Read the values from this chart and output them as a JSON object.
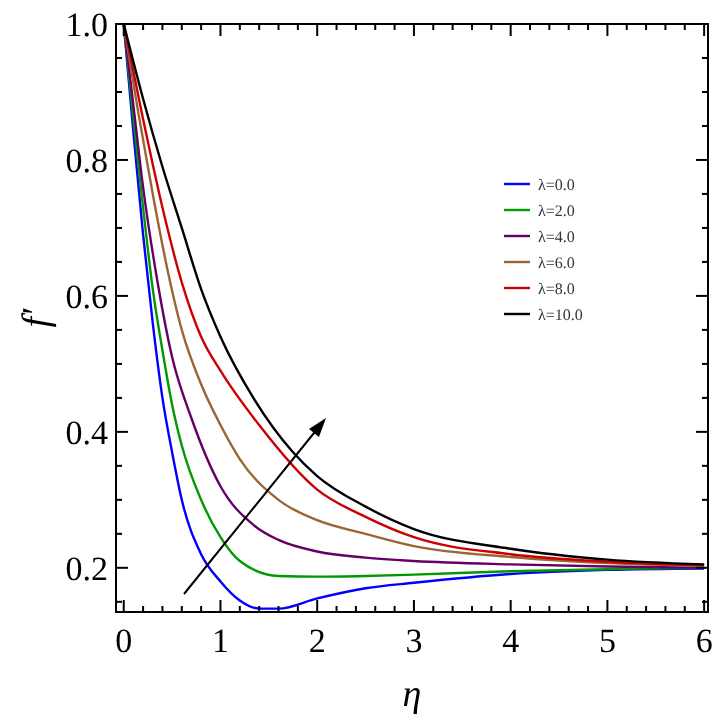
{
  "chart_data": {
    "type": "line",
    "xlabel": "η",
    "ylabel": "f′",
    "xlim": [
      -0.08,
      6.04
    ],
    "ylim": [
      0.135,
      1.0
    ],
    "xticks": [
      0,
      {
        "value": 0.2,
        "label": null
      },
      {
        "value": 0.4,
        "label": null
      },
      {
        "value": 0.6,
        "label": null
      },
      {
        "value": 0.8,
        "label": null
      },
      1,
      {
        "value": 1.2,
        "label": null
      },
      {
        "value": 1.4,
        "label": null
      },
      {
        "value": 1.6,
        "label": null
      },
      {
        "value": 1.8,
        "label": null
      },
      2,
      {
        "value": 2.2,
        "label": null
      },
      {
        "value": 2.4,
        "label": null
      },
      {
        "value": 2.6,
        "label": null
      },
      {
        "value": 2.8,
        "label": null
      },
      3,
      {
        "value": 3.2,
        "label": null
      },
      {
        "value": 3.4,
        "label": null
      },
      {
        "value": 3.6,
        "label": null
      },
      {
        "value": 3.8,
        "label": null
      },
      4,
      {
        "value": 4.2,
        "label": null
      },
      {
        "value": 4.4,
        "label": null
      },
      {
        "value": 4.6,
        "label": null
      },
      {
        "value": 4.8,
        "label": null
      },
      5,
      {
        "value": 5.2,
        "label": null
      },
      {
        "value": 5.4,
        "label": null
      },
      {
        "value": 5.6,
        "label": null
      },
      {
        "value": 5.8,
        "label": null
      },
      6
    ],
    "yticks": [
      {
        "value": 0.15,
        "label": null
      },
      {
        "value": 0.2,
        "label": "0.2"
      },
      {
        "value": 0.25,
        "label": null
      },
      {
        "value": 0.3,
        "label": null
      },
      {
        "value": 0.35,
        "label": null
      },
      {
        "value": 0.4,
        "label": "0.4"
      },
      {
        "value": 0.45,
        "label": null
      },
      {
        "value": 0.5,
        "label": null
      },
      {
        "value": 0.55,
        "label": null
      },
      {
        "value": 0.6,
        "label": "0.6"
      },
      {
        "value": 0.65,
        "label": null
      },
      {
        "value": 0.7,
        "label": null
      },
      {
        "value": 0.75,
        "label": null
      },
      {
        "value": 0.8,
        "label": "0.8"
      },
      {
        "value": 0.85,
        "label": null
      },
      {
        "value": 0.9,
        "label": null
      },
      {
        "value": 0.95,
        "label": null
      },
      {
        "value": 1.0,
        "label": "1.0"
      }
    ],
    "grid": false,
    "legend": "right",
    "line_style": "solid",
    "marker": "none",
    "series": [
      {
        "name": "λ=0.0",
        "color": "#0000ff",
        "x": [
          0,
          0.1,
          0.2,
          0.3,
          0.4,
          0.5,
          0.6,
          0.8,
          1.0,
          1.2,
          1.4,
          1.6,
          2.0,
          2.5,
          3.0,
          4.0,
          5.0,
          6.0
        ],
        "values": [
          1.0,
          0.84,
          0.69,
          0.56,
          0.45,
          0.37,
          0.3,
          0.22,
          0.18,
          0.152,
          0.14,
          0.14,
          0.155,
          0.17,
          0.178,
          0.191,
          0.197,
          0.199
        ]
      },
      {
        "name": "λ=2.0",
        "color": "#009900",
        "x": [
          0,
          0.1,
          0.2,
          0.3,
          0.4,
          0.5,
          0.6,
          0.8,
          1.0,
          1.2,
          1.6,
          2.0,
          2.5,
          3.0,
          4.0,
          5.0,
          6.0
        ],
        "values": [
          1.0,
          0.86,
          0.73,
          0.61,
          0.52,
          0.44,
          0.38,
          0.3,
          0.245,
          0.21,
          0.188,
          0.187,
          0.188,
          0.19,
          0.195,
          0.198,
          0.2
        ]
      },
      {
        "name": "λ=4.0",
        "color": "#660066",
        "x": [
          0,
          0.1,
          0.2,
          0.35,
          0.5,
          0.7,
          1.0,
          1.35,
          1.6,
          2.0,
          2.5,
          3.0,
          4.0,
          5.0,
          6.0
        ],
        "values": [
          1.0,
          0.88,
          0.76,
          0.62,
          0.51,
          0.42,
          0.32,
          0.262,
          0.241,
          0.224,
          0.215,
          0.21,
          0.205,
          0.202,
          0.2
        ]
      },
      {
        "name": "λ=6.0",
        "color": "#996633",
        "x": [
          0,
          0.15,
          0.3,
          0.45,
          0.6,
          0.8,
          1.0,
          1.2,
          1.6,
          2.0,
          2.5,
          3.0,
          4.0,
          5.0,
          6.0
        ],
        "values": [
          1.0,
          0.87,
          0.75,
          0.64,
          0.55,
          0.47,
          0.41,
          0.36,
          0.3,
          0.27,
          0.25,
          0.232,
          0.216,
          0.207,
          0.203
        ]
      },
      {
        "name": "λ=8.0",
        "color": "#cc0000",
        "x": [
          0,
          0.2,
          0.4,
          0.6,
          0.8,
          1.0,
          1.4,
          2.0,
          2.5,
          3.0,
          4.0,
          5.0,
          6.0
        ],
        "values": [
          1.0,
          0.86,
          0.73,
          0.62,
          0.54,
          0.49,
          0.41,
          0.315,
          0.275,
          0.245,
          0.22,
          0.209,
          0.204
        ]
      },
      {
        "name": "λ=10.0",
        "color": "#000000",
        "x": [
          0,
          0.2,
          0.4,
          0.6,
          0.8,
          1.0,
          1.34,
          1.75,
          2.0,
          2.5,
          3.0,
          4.0,
          5.0,
          6.0
        ],
        "values": [
          1.0,
          0.89,
          0.79,
          0.7,
          0.61,
          0.54,
          0.45,
          0.37,
          0.335,
          0.29,
          0.257,
          0.228,
          0.212,
          0.205
        ]
      }
    ]
  }
}
